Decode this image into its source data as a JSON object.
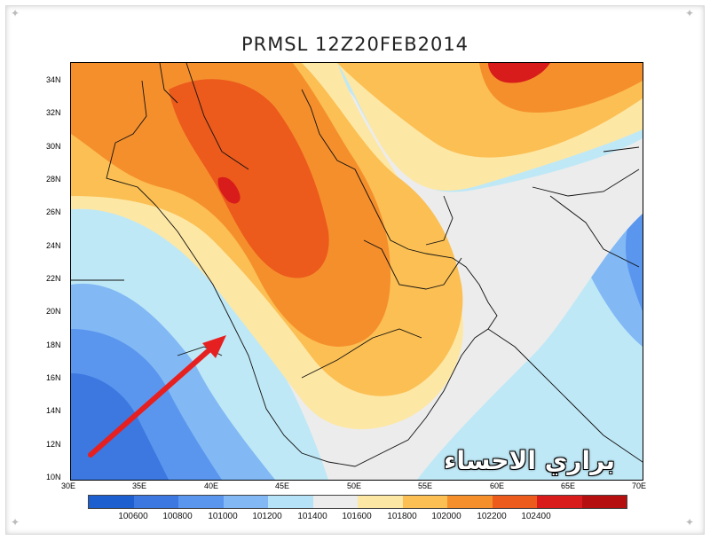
{
  "title": "PRMSL 12Z20FEB2014",
  "watermark": "براري الاحساء",
  "lat_labels": [
    "34N",
    "32N",
    "30N",
    "28N",
    "26N",
    "24N",
    "22N",
    "20N",
    "18N",
    "16N",
    "14N",
    "12N",
    "10N"
  ],
  "lon_labels": [
    "30E",
    "35E",
    "40E",
    "45E",
    "50E",
    "55E",
    "60E",
    "65E",
    "70E"
  ],
  "colorbar": {
    "labels": [
      "100600",
      "100800",
      "101000",
      "101200",
      "101400",
      "101600",
      "101800",
      "102000",
      "102200",
      "102400"
    ],
    "colors": [
      "#1e5fcf",
      "#3c78e0",
      "#5a96ee",
      "#82b9f5",
      "#b6e2f8",
      "#ececec",
      "#fde7a4",
      "#fbbf53",
      "#f58f2c",
      "#ec5a1c",
      "#d81b1b",
      "#b50f0f"
    ]
  },
  "arrow": {
    "color": "#e62020"
  }
}
